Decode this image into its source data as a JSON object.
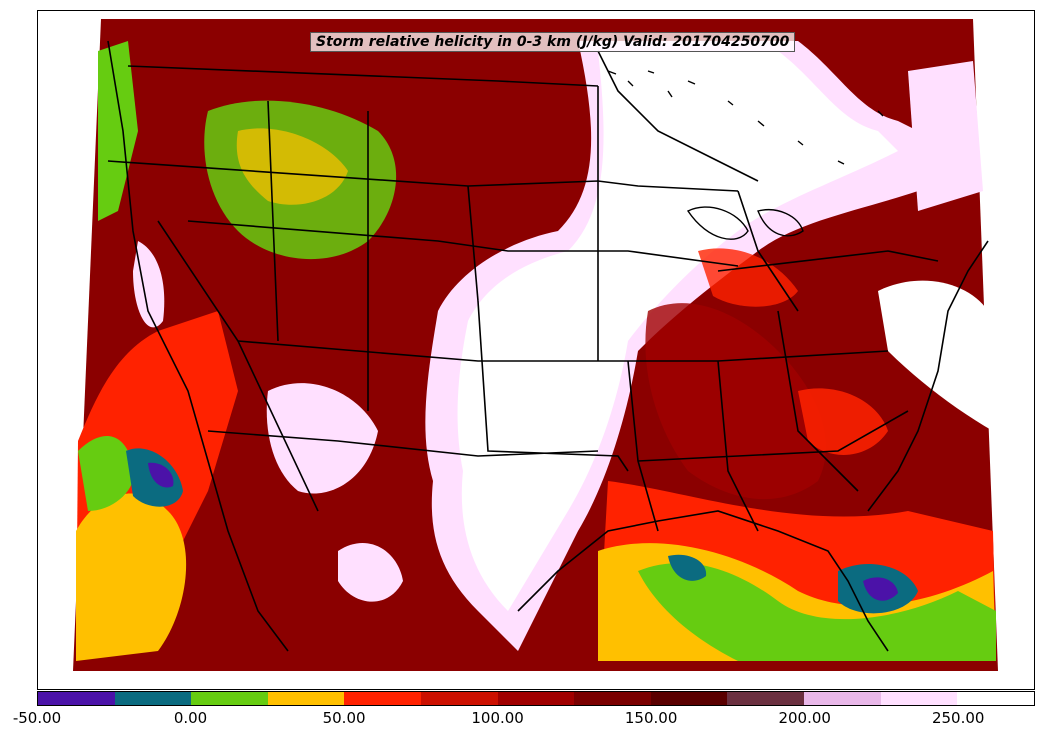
{
  "title": "Storm relative helicity in 0-3 km (J/kg) Valid: 201704250700",
  "colorbar": {
    "colors": [
      "#4b12a8",
      "#0b6b80",
      "#66cc11",
      "#ffc000",
      "#ff2200",
      "#cc1000",
      "#a00000",
      "#7a0000",
      "#5a0000",
      "#6b3040",
      "#e9b8e9",
      "#ffe0ff",
      "#ffffff"
    ],
    "ticks": [
      {
        "label": "-50.00",
        "value": -50
      },
      {
        "label": "0.00",
        "value": 0
      },
      {
        "label": "50.00",
        "value": 50
      },
      {
        "label": "100.00",
        "value": 100
      },
      {
        "label": "150.00",
        "value": 150
      },
      {
        "label": "200.00",
        "value": 200
      },
      {
        "label": "250.00",
        "value": 250
      }
    ],
    "vmin": -50,
    "step": 25
  }
}
